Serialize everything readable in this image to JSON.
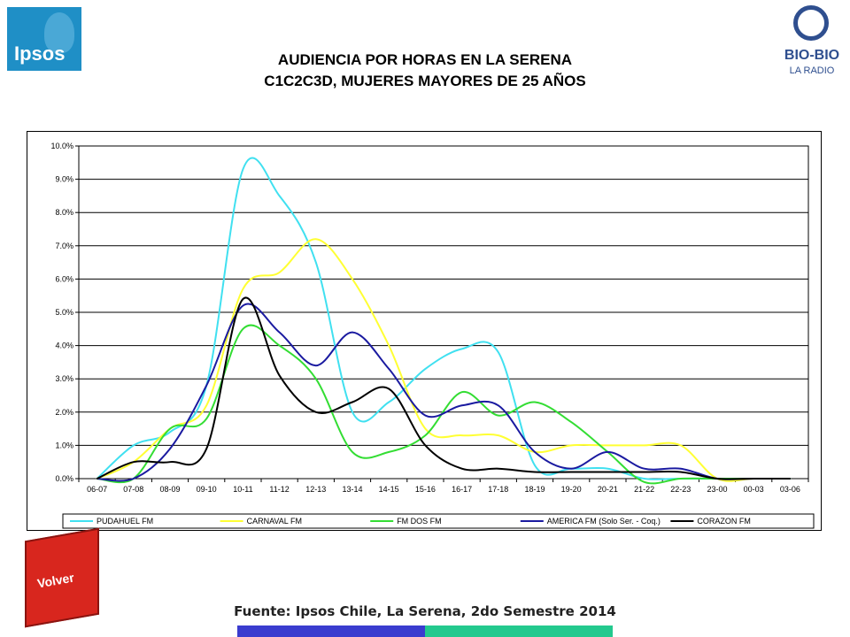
{
  "header": {
    "title_line1": "AUDIENCIA POR HORAS EN LA SERENA",
    "title_line2": "C1C2C3D, MUJERES MAYORES DE 25 AÑOS"
  },
  "logos": {
    "ipsos_text": "Ipsos",
    "biobio_text": "BIO-BIO",
    "biobio_sub": "LA RADIO"
  },
  "volver_label": "Volver",
  "source_text": "Fuente: Ipsos Chile, La Serena, 2do Semestre 2014",
  "colors": {
    "pudahuel": "#40e0f0",
    "carnaval": "#ffff33",
    "fmdos": "#33dd33",
    "america": "#1a1aa0",
    "corazon": "#000000",
    "grid": "#000000",
    "bar_blue": "#3a3ccf",
    "bar_green": "#23c98e",
    "volver_red": "#d8261e"
  },
  "chart_data": {
    "type": "line",
    "title": "",
    "xlabel": "",
    "ylabel": "",
    "ylim": [
      0,
      10
    ],
    "y_unit": "%",
    "yticks": [
      "0.0%",
      "1.0%",
      "2.0%",
      "3.0%",
      "4.0%",
      "5.0%",
      "6.0%",
      "7.0%",
      "8.0%",
      "9.0%",
      "10.0%"
    ],
    "grid": true,
    "legend_position": "bottom",
    "categories": [
      "06-07",
      "07-08",
      "08-09",
      "09-10",
      "10-11",
      "11-12",
      "12-13",
      "13-14",
      "14-15",
      "15-16",
      "16-17",
      "17-18",
      "18-19",
      "19-20",
      "20-21",
      "21-22",
      "22-23",
      "23-00",
      "00-03",
      "03-06"
    ],
    "series": [
      {
        "name": "PUDAHUEL FM",
        "color_key": "pudahuel",
        "values": [
          0.0,
          1.0,
          1.4,
          2.8,
          9.3,
          8.5,
          6.5,
          2.0,
          2.3,
          3.3,
          3.9,
          3.8,
          0.4,
          0.3,
          0.3,
          0.0,
          0.0,
          0.0,
          0.0,
          0.0
        ]
      },
      {
        "name": "CARNAVAL FM",
        "color_key": "carnaval",
        "values": [
          0.0,
          0.5,
          1.5,
          2.2,
          5.7,
          6.2,
          7.2,
          6.0,
          4.0,
          1.5,
          1.3,
          1.3,
          0.8,
          1.0,
          1.0,
          1.0,
          1.0,
          0.0,
          0.0,
          0.0
        ]
      },
      {
        "name": "FM DOS FM",
        "color_key": "fmdos",
        "values": [
          0.0,
          0.0,
          1.5,
          1.8,
          4.5,
          4.0,
          3.0,
          0.8,
          0.8,
          1.3,
          2.6,
          1.9,
          2.3,
          1.7,
          0.8,
          -0.1,
          0.0,
          0.0,
          0.0,
          0.0
        ]
      },
      {
        "name": "AMERICA FM  (Solo Ser. - Coq.)",
        "color_key": "america",
        "values": [
          0.0,
          0.0,
          0.9,
          2.8,
          5.2,
          4.4,
          3.4,
          4.4,
          3.3,
          1.9,
          2.2,
          2.2,
          0.8,
          0.3,
          0.8,
          0.3,
          0.3,
          0.0,
          0.0,
          0.0
        ]
      },
      {
        "name": "CORAZON FM",
        "color_key": "corazon",
        "values": [
          0.0,
          0.5,
          0.5,
          0.9,
          5.4,
          3.1,
          2.0,
          2.3,
          2.7,
          1.0,
          0.3,
          0.3,
          0.2,
          0.2,
          0.2,
          0.2,
          0.2,
          0.0,
          0.0,
          0.0
        ]
      }
    ]
  }
}
